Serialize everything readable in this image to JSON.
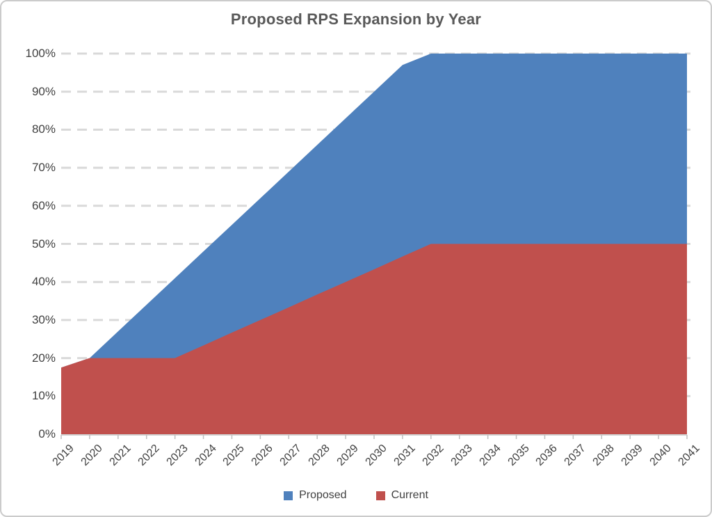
{
  "chart_data": {
    "type": "area",
    "title": "Proposed RPS Expansion by Year",
    "years": [
      "2019",
      "2020",
      "2021",
      "2022",
      "2023",
      "2024",
      "2025",
      "2026",
      "2027",
      "2028",
      "2029",
      "2030",
      "2031",
      "2032",
      "2033",
      "2034",
      "2035",
      "2036",
      "2037",
      "2038",
      "2039",
      "2040",
      "2041"
    ],
    "y_ticks": [
      "0%",
      "10%",
      "20%",
      "30%",
      "40%",
      "50%",
      "60%",
      "70%",
      "80%",
      "90%",
      "100%"
    ],
    "ylim": [
      0,
      100
    ],
    "grid": "dashed-horizontal",
    "legend_position": "bottom",
    "series": [
      {
        "name": "Proposed",
        "color": "#4F81BD",
        "values": [
          17.5,
          20,
          27,
          34,
          41,
          48,
          55,
          62,
          69,
          76,
          83,
          90,
          97,
          100,
          100,
          100,
          100,
          100,
          100,
          100,
          100,
          100,
          100
        ]
      },
      {
        "name": "Current",
        "color": "#C0504D",
        "values": [
          17.5,
          20,
          20,
          20,
          20,
          23.3,
          26.7,
          30,
          33.3,
          36.7,
          40,
          43.3,
          46.7,
          50,
          50,
          50,
          50,
          50,
          50,
          50,
          50,
          50,
          50
        ]
      }
    ]
  },
  "styles": {
    "title_color": "#595959",
    "axis_label_color": "#404040",
    "gridline_color": "#D9D9D9",
    "axis_line_color": "#BFBFBF",
    "background": "#FFFFFF",
    "frame_border": "#CBCBCB"
  }
}
